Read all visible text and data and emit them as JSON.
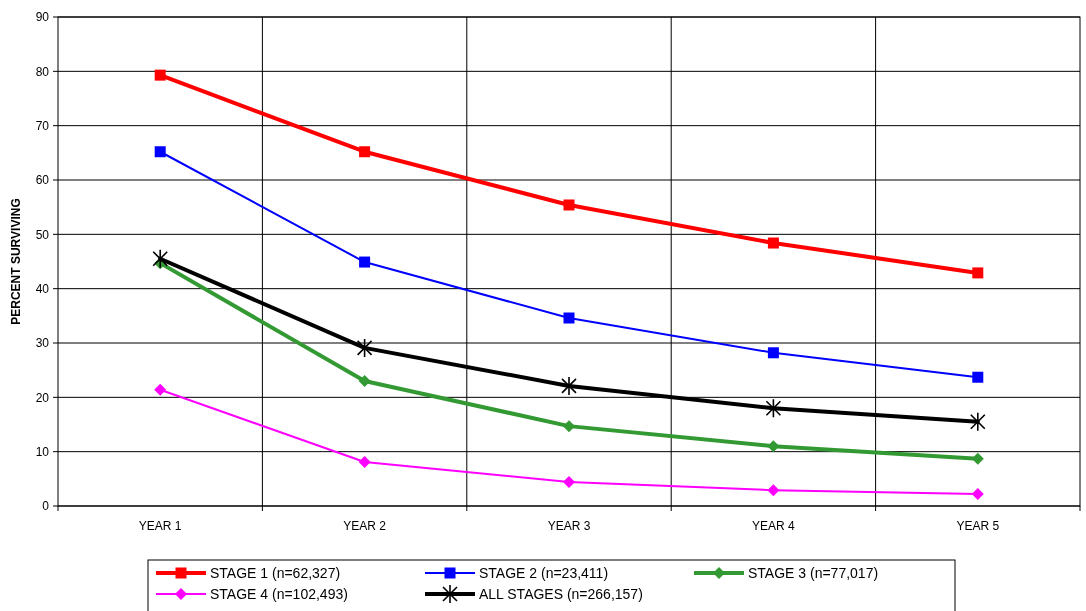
{
  "chart_data": {
    "type": "line",
    "ylabel": "PERCENT SURVIVING",
    "categories": [
      "YEAR 1",
      "YEAR 2",
      "YEAR 3",
      "YEAR 4",
      "YEAR 5"
    ],
    "ylim": [
      0,
      90
    ],
    "yticks": [
      0,
      10,
      20,
      30,
      40,
      50,
      60,
      70,
      80,
      90
    ],
    "grid": true,
    "legend": "bottom",
    "series": [
      {
        "name": "STAGE 1 (n=62,327)",
        "color": "#ff0000",
        "marker": "square",
        "values": [
          79.3,
          65.2,
          55.4,
          48.4,
          42.9
        ]
      },
      {
        "name": "STAGE 2 (n=23,411)",
        "color": "#0000ff",
        "marker": "square",
        "values": [
          65.2,
          44.9,
          34.6,
          28.2,
          23.7
        ]
      },
      {
        "name": "STAGE 3 (n=77,017)",
        "color": "#339933",
        "marker": "diamond",
        "values": [
          44.7,
          23.0,
          14.7,
          11.0,
          8.7
        ]
      },
      {
        "name": "STAGE 4 (n=102,493)",
        "color": "#ff00ff",
        "marker": "diamond",
        "values": [
          21.4,
          8.1,
          4.4,
          2.9,
          2.2
        ]
      },
      {
        "name": "ALL STAGES (n=266,157)",
        "color": "#000000",
        "marker": "cross",
        "values": [
          45.5,
          29.1,
          22.1,
          18.0,
          15.5
        ]
      }
    ]
  }
}
